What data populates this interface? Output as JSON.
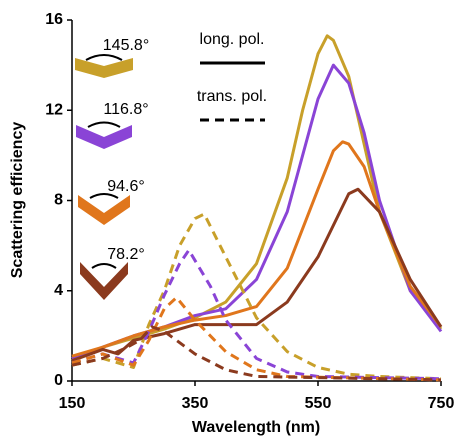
{
  "chart_data": {
    "type": "line",
    "x_label": "Wavelength (nm)",
    "y_label": "Scattering efficiency",
    "xlim": [
      150,
      750
    ],
    "xticks": [
      150,
      350,
      550,
      750
    ],
    "ylim": [
      0,
      16
    ],
    "yticks": [
      0,
      4,
      8,
      12,
      16
    ],
    "angle_labels": [
      {
        "label": "145.8°",
        "color": "#c8a02a"
      },
      {
        "label": "116.8°",
        "color": "#8a44d6"
      },
      {
        "label": "94.6°",
        "color": "#e0761c"
      },
      {
        "label": "78.2°",
        "color": "#8b3a1e"
      }
    ],
    "line_styles": [
      {
        "label": "long. pol.",
        "dash": false
      },
      {
        "label": "trans. pol.",
        "dash": true
      }
    ],
    "series": [
      {
        "color": "#c8a02a",
        "dash": false,
        "x": [
          150,
          200,
          250,
          300,
          350,
          400,
          450,
          500,
          525,
          550,
          565,
          575,
          600,
          625,
          650,
          700,
          750
        ],
        "values": [
          0.9,
          1.5,
          1.9,
          2.3,
          2.8,
          3.5,
          5.2,
          9,
          12,
          14.5,
          15.3,
          15.1,
          13.5,
          10.5,
          7.5,
          4,
          2.3
        ]
      },
      {
        "color": "#8a44d6",
        "dash": false,
        "x": [
          150,
          200,
          250,
          300,
          350,
          400,
          450,
          500,
          525,
          550,
          575,
          600,
          625,
          650,
          700,
          750
        ],
        "values": [
          1.0,
          1.5,
          2.0,
          2.4,
          2.9,
          3.2,
          4.5,
          7.5,
          10,
          12.5,
          14,
          13.2,
          11,
          8,
          4,
          2.2
        ]
      },
      {
        "color": "#e0761c",
        "dash": false,
        "x": [
          150,
          200,
          250,
          300,
          350,
          400,
          450,
          500,
          550,
          575,
          590,
          600,
          625,
          650,
          700,
          750
        ],
        "values": [
          1.1,
          1.5,
          2.0,
          2.4,
          2.7,
          2.9,
          3.3,
          5,
          8.5,
          10.2,
          10.6,
          10.5,
          9.5,
          7.5,
          4.2,
          2.4
        ]
      },
      {
        "color": "#8b3a1e",
        "dash": false,
        "x": [
          150,
          200,
          225,
          250,
          300,
          350,
          400,
          450,
          500,
          550,
          600,
          615,
          650,
          700,
          750
        ],
        "values": [
          0.9,
          1.4,
          1.2,
          1.8,
          2.1,
          2.5,
          2.5,
          2.5,
          3.5,
          5.5,
          8.3,
          8.5,
          7.5,
          4.5,
          2.4
        ]
      },
      {
        "color": "#c8a02a",
        "dash": true,
        "x": [
          150,
          200,
          225,
          250,
          275,
          300,
          325,
          350,
          365,
          400,
          450,
          500,
          550,
          600,
          650,
          750
        ],
        "values": [
          0.7,
          1.0,
          0.8,
          0.6,
          2.5,
          4,
          6,
          7.2,
          7.4,
          5.5,
          2.8,
          1.3,
          0.6,
          0.3,
          0.2,
          0.1
        ]
      },
      {
        "color": "#8a44d6",
        "dash": true,
        "x": [
          150,
          200,
          250,
          275,
          300,
          325,
          340,
          375,
          400,
          450,
          500,
          550,
          750
        ],
        "values": [
          0.8,
          1.2,
          0.8,
          2.2,
          3.8,
          5.2,
          5.8,
          4.2,
          2.7,
          1.0,
          0.4,
          0.2,
          0.1
        ]
      },
      {
        "color": "#e0761c",
        "dash": true,
        "x": [
          150,
          200,
          250,
          275,
          300,
          320,
          350,
          400,
          450,
          500,
          750
        ],
        "values": [
          0.8,
          1.2,
          0.7,
          1.8,
          3.2,
          3.7,
          2.7,
          1.3,
          0.5,
          0.2,
          0.05
        ]
      },
      {
        "color": "#8b3a1e",
        "dash": true,
        "x": [
          150,
          200,
          240,
          260,
          280,
          300,
          350,
          400,
          450,
          750
        ],
        "values": [
          0.7,
          1.0,
          1.5,
          1.8,
          2.4,
          2.2,
          1.2,
          0.5,
          0.2,
          0.05
        ]
      }
    ]
  }
}
